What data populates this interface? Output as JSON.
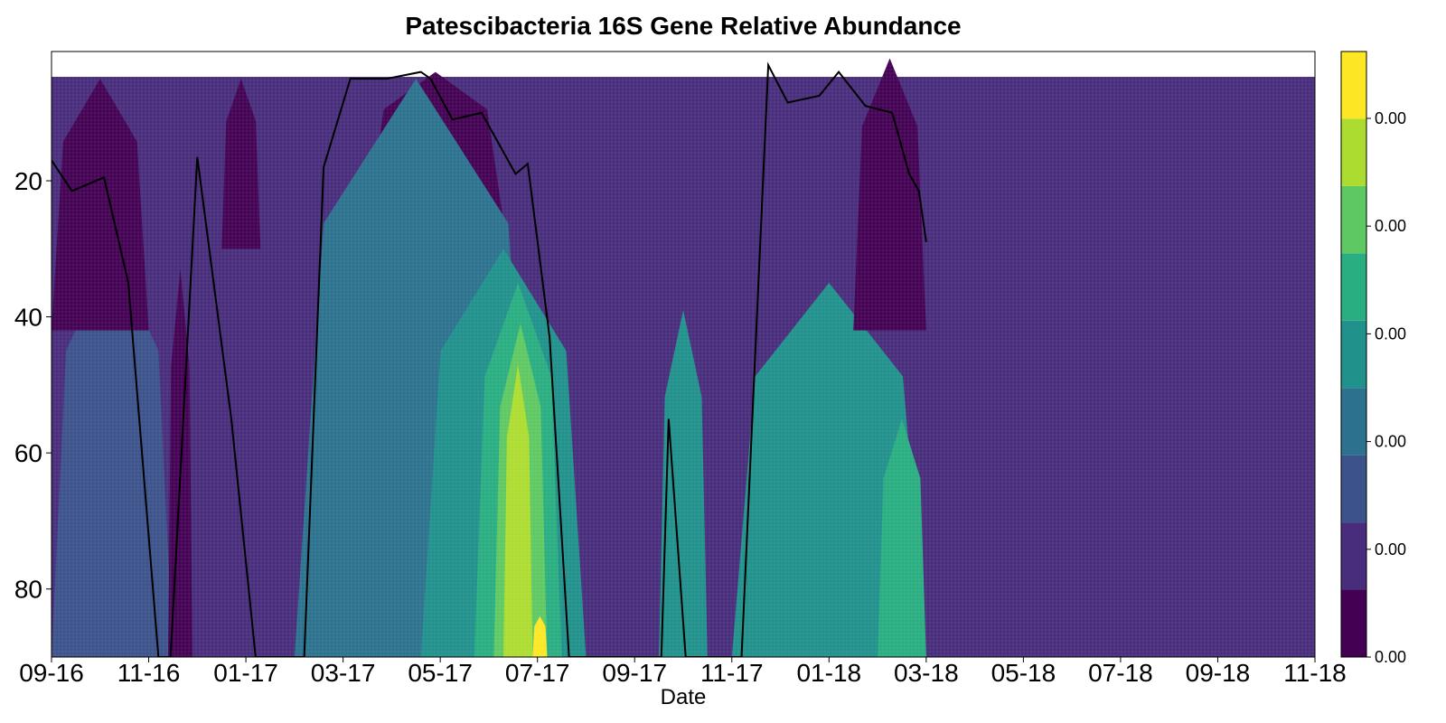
{
  "chart_data": {
    "type": "heatmap",
    "title": "Patescibacteria 16S Gene Relative Abundance",
    "xlabel": "Date",
    "ylabel": "",
    "x_tick_labels": [
      "09-16",
      "11-16",
      "01-17",
      "03-17",
      "05-17",
      "07-17",
      "09-17",
      "11-17",
      "01-18",
      "03-18",
      "05-18",
      "07-18",
      "09-18",
      "11-18"
    ],
    "y_ticks": [
      20,
      40,
      60,
      80
    ],
    "ylim": [
      90,
      1
    ],
    "y_reversed": true,
    "colorbar": {
      "tick_labels": [
        "0.00",
        "0.00",
        "0.00",
        "0.00",
        "0.00",
        "0.00"
      ],
      "levels": 9,
      "colors": [
        "#440154",
        "#472d7b",
        "#3b528b",
        "#2c728e",
        "#21918c",
        "#28ae80",
        "#5ec962",
        "#addc30",
        "#fde725"
      ]
    },
    "contour_regions": [
      {
        "level": 2,
        "x": [
          0.0,
          2.5
        ],
        "y": [
          30,
          90
        ]
      },
      {
        "level": 0,
        "x": [
          0.0,
          2.0
        ],
        "y": [
          5,
          42
        ]
      },
      {
        "level": 0,
        "x": [
          2.4,
          2.9
        ],
        "y": [
          33,
          90
        ]
      },
      {
        "level": 0,
        "x": [
          3.5,
          4.3
        ],
        "y": [
          5,
          30
        ]
      },
      {
        "level": 0,
        "x": [
          6.5,
          9.3
        ],
        "y": [
          4,
          26
        ]
      },
      {
        "level": 3,
        "x": [
          5.0,
          10.0
        ],
        "y": [
          5,
          90
        ]
      },
      {
        "level": 4,
        "x": [
          7.6,
          11.0
        ],
        "y": [
          30,
          90
        ]
      },
      {
        "level": 5,
        "x": [
          8.7,
          10.5
        ],
        "y": [
          35,
          90
        ]
      },
      {
        "level": 6,
        "x": [
          9.1,
          10.2
        ],
        "y": [
          41,
          90
        ]
      },
      {
        "level": 7,
        "x": [
          9.3,
          9.9
        ],
        "y": [
          47,
          90
        ]
      },
      {
        "level": 8,
        "x": [
          9.9,
          10.2
        ],
        "y": [
          84,
          90
        ]
      },
      {
        "level": 4,
        "x": [
          12.5,
          13.5
        ],
        "y": [
          39,
          90
        ]
      },
      {
        "level": 4,
        "x": [
          14.0,
          18.0
        ],
        "y": [
          35,
          90
        ]
      },
      {
        "level": 0,
        "x": [
          16.5,
          18.0
        ],
        "y": [
          2,
          42
        ]
      },
      {
        "level": 5,
        "x": [
          17.0,
          18.0
        ],
        "y": [
          55,
          90
        ]
      }
    ],
    "series": [
      {
        "x": [
          0.0,
          0.42,
          1.08,
          1.58,
          2.2,
          2.45,
          3.0,
          3.7,
          4.2,
          5.2,
          5.6,
          6.15,
          6.9,
          7.6,
          7.8,
          8.25,
          8.85,
          9.55,
          9.8,
          10.25,
          10.65,
          12.55,
          12.7,
          13.05,
          14.2,
          14.75,
          15.15,
          15.8,
          16.2,
          16.75,
          17.3,
          17.65,
          17.85,
          18.0
        ],
        "y": [
          17,
          21.5,
          19.5,
          35,
          90,
          90,
          16.5,
          55,
          90,
          90,
          18,
          5,
          5,
          4,
          5,
          11,
          10,
          19,
          17.5,
          43,
          90,
          90,
          55,
          90,
          90,
          3,
          8.5,
          7.5,
          4,
          9,
          10,
          19,
          21.5,
          29
        ]
      }
    ]
  }
}
